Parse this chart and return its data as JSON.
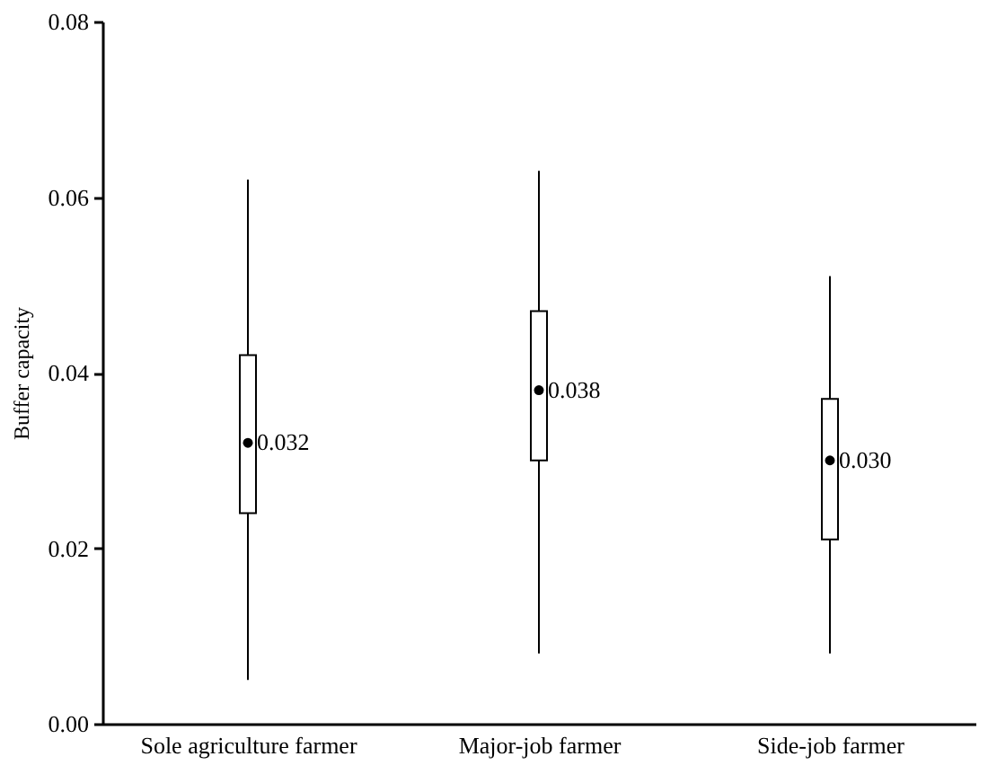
{
  "chart_data": {
    "type": "box",
    "ylabel": "Buffer capacity",
    "categories": [
      "Sole agriculture farmer",
      "Major-job farmer",
      "Side-job farmer"
    ],
    "boxes": [
      {
        "low": 0.005,
        "q1": 0.024,
        "median": 0.032,
        "q3": 0.042,
        "high": 0.062
      },
      {
        "low": 0.008,
        "q1": 0.03,
        "median": 0.038,
        "q3": 0.047,
        "high": 0.063
      },
      {
        "low": 0.008,
        "q1": 0.021,
        "median": 0.03,
        "q3": 0.037,
        "high": 0.051
      }
    ],
    "ylim": [
      0,
      0.08
    ],
    "yticks": [
      {
        "value": 0,
        "label": "0.00"
      },
      0.02,
      0.04,
      0.06,
      0.08
    ],
    "annotations": [
      {
        "text": "0.032",
        "x": "Sole agriculture farmer",
        "y": 0.032
      },
      {
        "text": "0.038",
        "x": "Major-job farmer",
        "y": 0.038
      },
      {
        "text": "0.030",
        "x": "Side-job farmer",
        "y": 0.03
      }
    ],
    "grid": false
  }
}
